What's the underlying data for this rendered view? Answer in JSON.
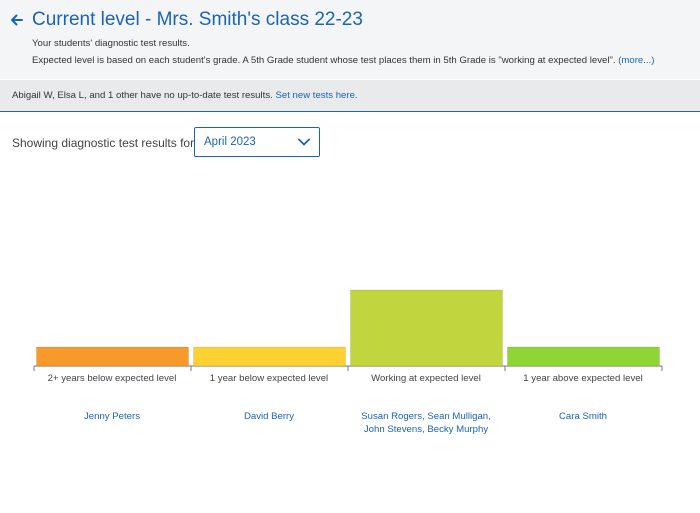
{
  "header": {
    "title": "Current level - Mrs. Smith's class 22-23",
    "subtitle": "Your students' diagnostic test results.",
    "description": "Expected level is based on each student's grade. A 5th Grade student whose test places them in 5th Grade is \"working at expected level\".",
    "more_link": "(more...)"
  },
  "notice": {
    "text": "Abigail W, Elsa L, and 1 other have no up-to-date test results.",
    "link": "Set new tests here."
  },
  "filter": {
    "label": "Showing diagnostic test results for",
    "selected": "April 2023"
  },
  "chart_data": {
    "type": "bar",
    "categories": [
      "2+ years below expected level",
      "1 year below expected level",
      "Working at expected level",
      "1 year above expected level"
    ],
    "values": [
      1,
      1,
      4,
      1
    ],
    "colors": [
      "#f7992b",
      "#fdd132",
      "#c1d53e",
      "#8fd533"
    ],
    "students": [
      "Jenny Peters",
      "David Berry",
      "Susan Rogers, Sean Mulligan,\nJohn Stevens, Becky Murphy",
      "Cara Smith"
    ],
    "ylim": [
      0,
      4
    ]
  },
  "icons": {
    "back": "arrow-left-icon",
    "dropdown": "chevron-down-icon"
  },
  "accent_color": "#1b63b5"
}
